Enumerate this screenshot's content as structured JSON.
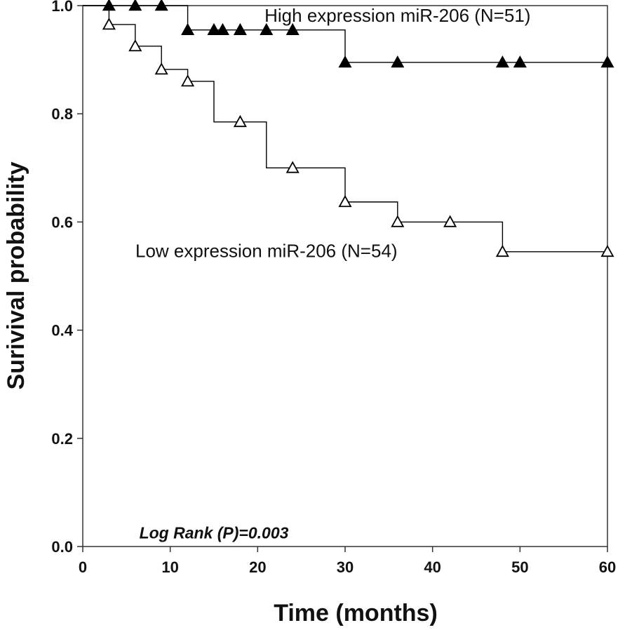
{
  "chart_data": {
    "type": "line",
    "subtype": "kaplan-meier",
    "title": "",
    "xlabel": "Time (months)",
    "ylabel": "Surivival probability",
    "xlim": [
      0,
      60
    ],
    "ylim": [
      0.0,
      1.0
    ],
    "x_ticks": [
      0,
      10,
      20,
      30,
      40,
      50,
      60
    ],
    "x_tick_labels": [
      "0",
      "10",
      "20",
      "30",
      "40",
      "50",
      "60"
    ],
    "y_ticks": [
      0.0,
      0.2,
      0.4,
      0.6,
      0.8,
      1.0
    ],
    "y_tick_labels": [
      "0.0",
      "0.2",
      "0.4",
      "0.6",
      "0.8",
      "1.0"
    ],
    "grid": false,
    "series": [
      {
        "name": "High expression miR-206 (N=51)",
        "marker": "filled-triangle",
        "color": "#000000",
        "steps": [
          [
            0,
            1.0
          ],
          [
            12,
            0.955
          ],
          [
            30,
            0.895
          ],
          [
            60,
            0.895
          ]
        ],
        "censored": [
          [
            3,
            1.0
          ],
          [
            6,
            1.0
          ],
          [
            9,
            1.0
          ],
          [
            12,
            0.955
          ],
          [
            15,
            0.955
          ],
          [
            16,
            0.955
          ],
          [
            18,
            0.955
          ],
          [
            21,
            0.955
          ],
          [
            24,
            0.955
          ],
          [
            30,
            0.895
          ],
          [
            36,
            0.895
          ],
          [
            48,
            0.895
          ],
          [
            50,
            0.895
          ],
          [
            60,
            0.895
          ]
        ]
      },
      {
        "name": "Low expression miR-206 (N=54)",
        "marker": "open-triangle",
        "color": "#000000",
        "steps": [
          [
            0,
            1.0
          ],
          [
            3,
            0.965
          ],
          [
            6,
            0.925
          ],
          [
            9,
            0.882
          ],
          [
            12,
            0.86
          ],
          [
            15,
            0.785
          ],
          [
            21,
            0.7
          ],
          [
            30,
            0.637
          ],
          [
            36,
            0.6
          ],
          [
            48,
            0.545
          ],
          [
            60,
            0.545
          ]
        ],
        "censored": [
          [
            3,
            0.965
          ],
          [
            6,
            0.925
          ],
          [
            9,
            0.882
          ],
          [
            12,
            0.86
          ],
          [
            18,
            0.785
          ],
          [
            24,
            0.7
          ],
          [
            30,
            0.637
          ],
          [
            36,
            0.6
          ],
          [
            42,
            0.6
          ],
          [
            48,
            0.545
          ],
          [
            60,
            0.545
          ]
        ]
      }
    ],
    "annotations": [
      {
        "id": "high",
        "text": "High expression miR-206 (N=51)",
        "x": 36,
        "y": 0.97
      },
      {
        "id": "low",
        "text": "Low expression miR-206 (N=54)",
        "x": 21,
        "y": 0.535
      },
      {
        "id": "logrank",
        "text": "Log Rank (P)=0.003",
        "x": 15,
        "y": 0.015
      }
    ]
  }
}
